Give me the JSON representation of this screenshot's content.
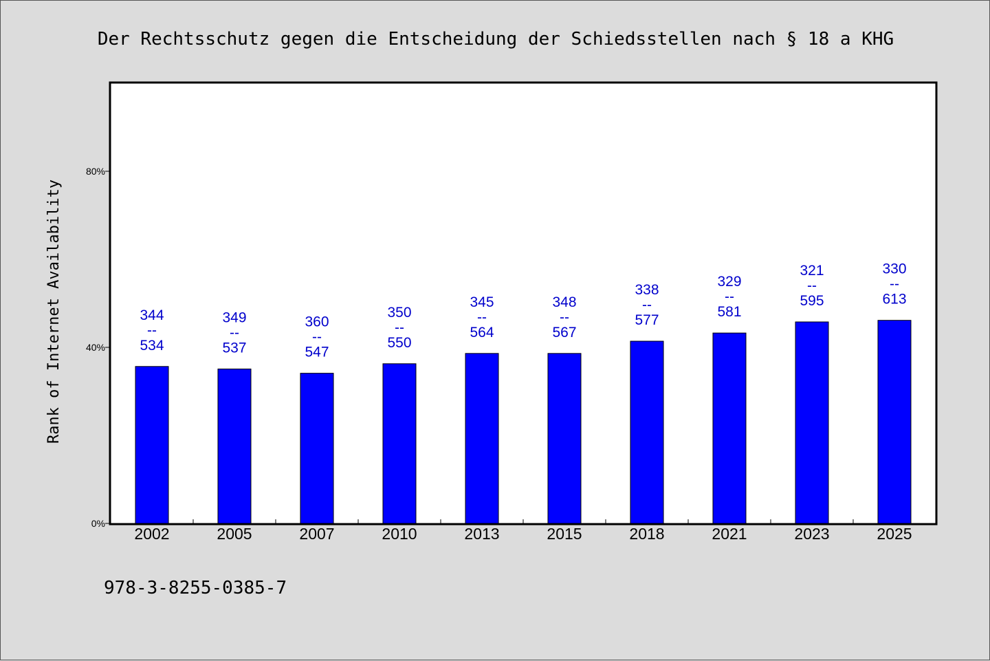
{
  "chart_data": {
    "type": "bar",
    "title": "Der Rechtsschutz gegen die Entscheidung der Schiedsstellen nach § 18 a KHG",
    "ylabel": "Rank of Internet Availability",
    "xlabel": "",
    "footnote": "978-3-8255-0385-7",
    "categories": [
      "2002",
      "2005",
      "2007",
      "2010",
      "2013",
      "2015",
      "2018",
      "2021",
      "2023",
      "2025"
    ],
    "values": [
      0.3566,
      0.3509,
      0.3412,
      0.3628,
      0.3862,
      0.3862,
      0.414,
      0.4326,
      0.4578,
      0.4614
    ],
    "ranks": [
      "344",
      "349",
      "360",
      "350",
      "345",
      "348",
      "338",
      "329",
      "321",
      "330"
    ],
    "totals": [
      "534",
      "537",
      "547",
      "550",
      "564",
      "567",
      "577",
      "581",
      "595",
      "613"
    ],
    "label_separator": "--",
    "ylim": [
      0,
      1
    ],
    "yticks": [
      0,
      0.4,
      0.8
    ],
    "ytick_labels": [
      "0%",
      "40%",
      "80%"
    ],
    "bar_color": "#0000ff",
    "label_color": "#0000cc",
    "grid": false,
    "legend": "none"
  }
}
